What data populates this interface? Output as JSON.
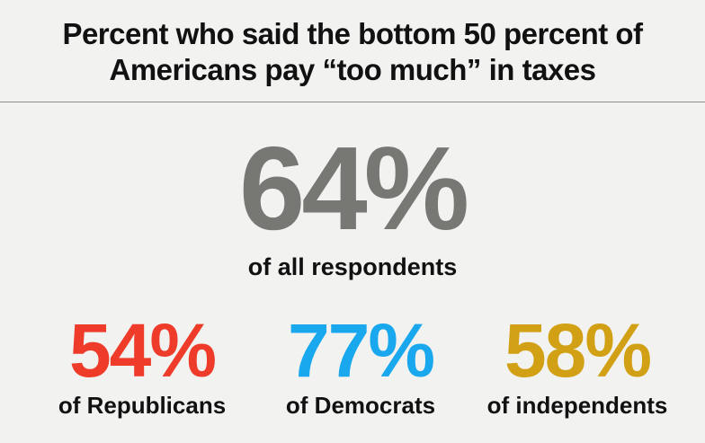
{
  "header": {
    "title_line_1": "Percent who said the bottom 50 percent of",
    "title_line_2": "Americans pay “too much” in taxes"
  },
  "colors": {
    "all": "#777773",
    "republicans": "#ee3b2a",
    "democrats": "#19a8ee",
    "independents": "#d1a015",
    "background": "#f2f2f0"
  },
  "chart_data": {
    "type": "table",
    "title": "Percent who said the bottom 50 percent of Americans pay “too much” in taxes",
    "unit": "%",
    "overall": {
      "value": 64,
      "display": "64%",
      "label": "of all respondents"
    },
    "groups": [
      {
        "value": 54,
        "display": "54%",
        "label": "of Republicans"
      },
      {
        "value": 77,
        "display": "77%",
        "label": "of Democrats"
      },
      {
        "value": 58,
        "display": "58%",
        "label": "of independents"
      }
    ]
  }
}
